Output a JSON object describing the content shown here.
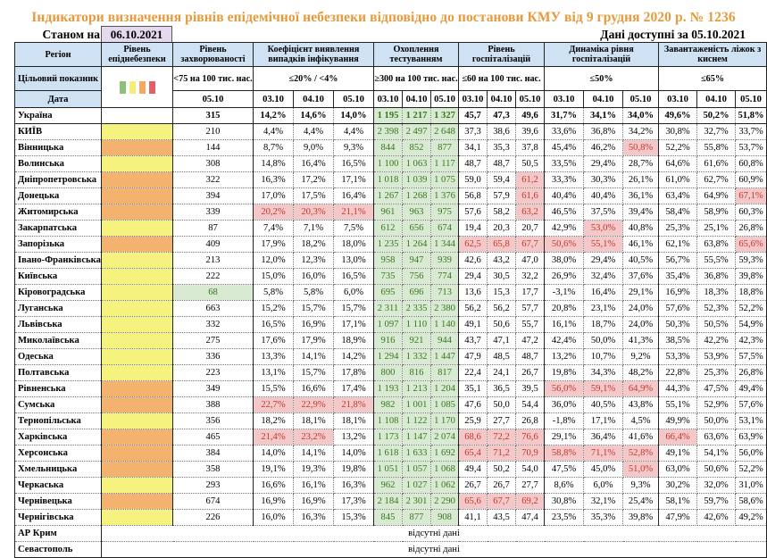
{
  "title": "Індикатори визначення рівнів епідемічної небезпеки відповідно до постанови КМУ від 9 грудня 2020 р. № 1236",
  "as_of_label": "Станом на",
  "as_of_date": "06.10.2021",
  "available_label": "Дані доступні за  05.10.2021",
  "headers": {
    "region": "Регіон",
    "level": "Рівень епіднебезпеки",
    "incidence": "Рівень захворюваності",
    "detection": "Коефіцієнт виявлення випадків інфікування",
    "testing": "Охоплення тестуванням",
    "hosp": "Рівень госпіталізацій",
    "hosp_dyn": "Динаміка рівня госпіталізацій",
    "beds": "Завантаженість ліжок з киснем"
  },
  "target_row": {
    "label": "Цільовий показник",
    "incidence": "<75 на 100 тис. нас.",
    "detection": "≤20% / <4%",
    "testing": "≥300 на 100 тис. нас.",
    "hosp": "≤60 на 100 тис. нас.",
    "hosp_dyn": "≤50%",
    "beds": "≤65%"
  },
  "legend_colors": [
    "#8fc07a",
    "#f2ee78",
    "#f3a95e",
    "#e26168"
  ],
  "date_row": {
    "label": "Дата",
    "incidence": "05.10",
    "d1": "03.10",
    "d2": "04.10",
    "d3": "05.10"
  },
  "colors": {
    "yellow": "#f5f37d",
    "orange": "#f3b26e",
    "green_fill": "#d9ead3",
    "red_fill": "#f4c7c9",
    "header_fill": "#cfe2f3",
    "title": "#e69a3c"
  },
  "rows": [
    {
      "region": "Україна",
      "level": "none",
      "inc": "315",
      "det": [
        "14,2%",
        "14,6%",
        "14,0%"
      ],
      "test": [
        "1 195",
        "1 217",
        "1 327"
      ],
      "hosp": [
        "45,7",
        "47,3",
        "49,6"
      ],
      "dyn": [
        "31,7%",
        "34,1%",
        "34,0%"
      ],
      "beds": [
        "49,6%",
        "50,2%",
        "51,8%"
      ]
    },
    {
      "region": "КИЇВ",
      "level": "yellow",
      "inc": "210",
      "det": [
        "4,4%",
        "4,4%",
        "4,4%"
      ],
      "test": [
        "2 398",
        "2 497",
        "2 648"
      ],
      "hosp": [
        "37,3",
        "38,6",
        "39,6"
      ],
      "dyn": [
        "33,6%",
        "36,8%",
        "34,2%"
      ],
      "beds": [
        "30,8%",
        "32,7%",
        "33,7%"
      ]
    },
    {
      "region": "Вінницька",
      "level": "orange",
      "inc": "144",
      "det": [
        "8,7%",
        "9,0%",
        "9,3%"
      ],
      "test": [
        "844",
        "852",
        "877"
      ],
      "hosp": [
        "34,1",
        "35,3",
        "37,8"
      ],
      "dyn": [
        "45,4%",
        "46,2%",
        "50,8%"
      ],
      "beds": [
        "52,2%",
        "55,8%",
        "53,7%"
      ],
      "red": [
        "dyn2"
      ]
    },
    {
      "region": "Волинська",
      "level": "yellow",
      "inc": "308",
      "det": [
        "14,8%",
        "16,4%",
        "16,5%"
      ],
      "test": [
        "1 100",
        "1 063",
        "1 117"
      ],
      "hosp": [
        "48,7",
        "48,7",
        "50,5"
      ],
      "dyn": [
        "33,5%",
        "29,4%",
        "28,7%"
      ],
      "beds": [
        "64,6%",
        "61,6%",
        "60,8%"
      ]
    },
    {
      "region": "Дніпропетровська",
      "level": "orange",
      "inc": "322",
      "det": [
        "16,3%",
        "17,2%",
        "17,1%"
      ],
      "test": [
        "1 018",
        "1 039",
        "1 075"
      ],
      "hosp": [
        "59,0",
        "59,4",
        "61,2"
      ],
      "dyn": [
        "33,3%",
        "30,3%",
        "26,1%"
      ],
      "beds": [
        "61,0%",
        "62,7%",
        "60,9%"
      ],
      "red": [
        "hosp2"
      ]
    },
    {
      "region": "Донецька",
      "level": "orange",
      "inc": "394",
      "det": [
        "17,0%",
        "17,5%",
        "16,4%"
      ],
      "test": [
        "1 267",
        "1 268",
        "1 376"
      ],
      "hosp": [
        "56,8",
        "57,9",
        "61,6"
      ],
      "dyn": [
        "40,4%",
        "40,4%",
        "36,1%"
      ],
      "beds": [
        "63,4%",
        "64,9%",
        "67,1%"
      ],
      "red": [
        "hosp2",
        "beds2"
      ]
    },
    {
      "region": "Житомирська",
      "level": "orange",
      "inc": "339",
      "det": [
        "20,2%",
        "20,3%",
        "21,1%"
      ],
      "test": [
        "961",
        "963",
        "975"
      ],
      "hosp": [
        "57,6",
        "58,2",
        "63,2"
      ],
      "dyn": [
        "46,5%",
        "37,5%",
        "39,4%"
      ],
      "beds": [
        "58,4%",
        "58,9%",
        "60,3%"
      ],
      "red": [
        "det0",
        "det1",
        "det2",
        "hosp2"
      ]
    },
    {
      "region": "Закарпатська",
      "level": "yellow",
      "inc": "87",
      "det": [
        "7,4%",
        "7,1%",
        "7,5%"
      ],
      "test": [
        "612",
        "656",
        "674"
      ],
      "hosp": [
        "19,4",
        "20,3",
        "20,7"
      ],
      "dyn": [
        "42,9%",
        "53,0%",
        "40,8%"
      ],
      "beds": [
        "25,3%",
        "25,1%",
        "26,8%"
      ],
      "red": [
        "dyn1"
      ]
    },
    {
      "region": "Запорізька",
      "level": "orange",
      "inc": "409",
      "det": [
        "17,9%",
        "18,2%",
        "18,0%"
      ],
      "test": [
        "1 235",
        "1 264",
        "1 344"
      ],
      "hosp": [
        "62,5",
        "65,8",
        "67,7"
      ],
      "dyn": [
        "50,6%",
        "55,1%",
        "46,1%"
      ],
      "beds": [
        "62,1%",
        "63,8%",
        "65,6%"
      ],
      "red": [
        "hosp0",
        "hosp1",
        "hosp2",
        "dyn0",
        "dyn1",
        "beds2"
      ]
    },
    {
      "region": "Івано-Франківська",
      "level": "yellow",
      "inc": "213",
      "det": [
        "12,0%",
        "12,3%",
        "13,0%"
      ],
      "test": [
        "958",
        "947",
        "939"
      ],
      "hosp": [
        "42,6",
        "43,2",
        "47,0"
      ],
      "dyn": [
        "38,0%",
        "29,4%",
        "40,5%"
      ],
      "beds": [
        "56,7%",
        "55,5%",
        "59,3%"
      ]
    },
    {
      "region": "Київська",
      "level": "yellow",
      "inc": "222",
      "det": [
        "15,0%",
        "16,0%",
        "16,5%"
      ],
      "test": [
        "735",
        "756",
        "774"
      ],
      "hosp": [
        "29,4",
        "30,5",
        "32,2"
      ],
      "dyn": [
        "26,9%",
        "32,4%",
        "37,6%"
      ],
      "beds": [
        "35,4%",
        "36,8%",
        "39,8%"
      ]
    },
    {
      "region": "Кіровоградська",
      "level": "yellow",
      "inc": "68",
      "inc_green": true,
      "det": [
        "5,8%",
        "5,8%",
        "6,0%"
      ],
      "test": [
        "695",
        "696",
        "713"
      ],
      "hosp": [
        "13,6",
        "15,3",
        "17,7"
      ],
      "dyn": [
        "-3,1%",
        "16,4%",
        "29,1%"
      ],
      "beds": [
        "16,9%",
        "18,3%",
        "18,8%"
      ]
    },
    {
      "region": "Луганська",
      "level": "yellow",
      "inc": "663",
      "det": [
        "15,2%",
        "15,7%",
        "15,7%"
      ],
      "test": [
        "2 311",
        "2 335",
        "2 380"
      ],
      "hosp": [
        "56,2",
        "56,2",
        "57,7"
      ],
      "dyn": [
        "20,8%",
        "23,1%",
        "24,0%"
      ],
      "beds": [
        "57,6%",
        "52,3%",
        "52,2%"
      ]
    },
    {
      "region": "Львівська",
      "level": "yellow",
      "inc": "332",
      "det": [
        "16,5%",
        "16,9%",
        "17,1%"
      ],
      "test": [
        "1 097",
        "1 110",
        "1 140"
      ],
      "hosp": [
        "49,1",
        "50,6",
        "55,7"
      ],
      "dyn": [
        "16,1%",
        "18,7%",
        "24,0%"
      ],
      "beds": [
        "50,3%",
        "50,5%",
        "54,9%"
      ]
    },
    {
      "region": "Миколаївська",
      "level": "yellow",
      "inc": "275",
      "det": [
        "17,6%",
        "17,9%",
        "18,9%"
      ],
      "test": [
        "916",
        "921",
        "944"
      ],
      "hosp": [
        "43,7",
        "47,1",
        "47,2"
      ],
      "dyn": [
        "42,4%",
        "50,0%",
        "41,3%"
      ],
      "beds": [
        "38,5%",
        "42,2%",
        "42,3%"
      ]
    },
    {
      "region": "Одеська",
      "level": "yellow",
      "inc": "336",
      "det": [
        "13,3%",
        "14,1%",
        "14,2%"
      ],
      "test": [
        "1 294",
        "1 332",
        "1 447"
      ],
      "hosp": [
        "47,9",
        "48,5",
        "48,7"
      ],
      "dyn": [
        "13,2%",
        "10,7%",
        "9,2%"
      ],
      "beds": [
        "53,3%",
        "53,9%",
        "57,5%"
      ]
    },
    {
      "region": "Полтавська",
      "level": "yellow",
      "inc": "223",
      "det": [
        "13,1%",
        "15,7%",
        "17,8%"
      ],
      "test": [
        "800",
        "816",
        "817"
      ],
      "hosp": [
        "22,4",
        "24,1",
        "26,7"
      ],
      "dyn": [
        "19,8%",
        "34,3%",
        "48,2%"
      ],
      "beds": [
        "22,8%",
        "25,3%",
        "26,8%"
      ]
    },
    {
      "region": "Рівненська",
      "level": "orange",
      "inc": "349",
      "det": [
        "15,5%",
        "16,6%",
        "17,4%"
      ],
      "test": [
        "1 193",
        "1 213",
        "1 204"
      ],
      "hosp": [
        "35,1",
        "36,5",
        "39,5"
      ],
      "dyn": [
        "56,0%",
        "59,1%",
        "64,9%"
      ],
      "beds": [
        "44,3%",
        "47,5%",
        "49,4%"
      ],
      "red": [
        "dyn0",
        "dyn1",
        "dyn2"
      ]
    },
    {
      "region": "Сумська",
      "level": "orange",
      "inc": "388",
      "det": [
        "22,7%",
        "22,9%",
        "21,8%"
      ],
      "test": [
        "982",
        "1 001",
        "1 085"
      ],
      "hosp": [
        "47,6",
        "50,0",
        "54,4"
      ],
      "dyn": [
        "36,0%",
        "40,5%",
        "43,8%"
      ],
      "beds": [
        "55,1%",
        "52,9%",
        "57,6%"
      ],
      "red": [
        "det0",
        "det1",
        "det2"
      ]
    },
    {
      "region": "Тернопільська",
      "level": "yellow",
      "inc": "356",
      "det": [
        "18,2%",
        "18,1%",
        "18,1%"
      ],
      "test": [
        "1 108",
        "1 122",
        "1 170"
      ],
      "hosp": [
        "25,9",
        "27,7",
        "26,8"
      ],
      "dyn": [
        "-1,8%",
        "17,1%",
        "4,5%"
      ],
      "beds": [
        "49,9%",
        "50,0%",
        "53,1%"
      ]
    },
    {
      "region": "Харківська",
      "level": "orange",
      "inc": "465",
      "det": [
        "21,4%",
        "23,2%",
        "13,2%"
      ],
      "test": [
        "1 173",
        "1 147",
        "2 074"
      ],
      "hosp": [
        "68,6",
        "72,2",
        "76,6"
      ],
      "dyn": [
        "29,1%",
        "36,4%",
        "41,6%"
      ],
      "beds": [
        "66,4%",
        "63,6%",
        "63,9%"
      ],
      "red": [
        "det0",
        "det1",
        "hosp0",
        "hosp1",
        "hosp2",
        "beds0"
      ]
    },
    {
      "region": "Херсонська",
      "level": "orange",
      "inc": "384",
      "det": [
        "14,0%",
        "14,1%",
        "14,0%"
      ],
      "test": [
        "1 618",
        "1 633",
        "1 692"
      ],
      "hosp": [
        "65,4",
        "71,2",
        "70,9"
      ],
      "dyn": [
        "58,8%",
        "71,1%",
        "52,8%"
      ],
      "beds": [
        "49,1%",
        "54,1%",
        "56,0%"
      ],
      "red": [
        "hosp0",
        "hosp1",
        "hosp2",
        "dyn0",
        "dyn1",
        "dyn2"
      ]
    },
    {
      "region": "Хмельницька",
      "level": "orange",
      "inc": "358",
      "det": [
        "19,1%",
        "19,3%",
        "19,8%"
      ],
      "test": [
        "1 051",
        "1 057",
        "1 068"
      ],
      "hosp": [
        "49,4",
        "50,2",
        "54,0"
      ],
      "dyn": [
        "47,5%",
        "45,0%",
        "51,0%"
      ],
      "beds": [
        "63,0%",
        "50,6%",
        "52,2%"
      ],
      "red": [
        "dyn2"
      ]
    },
    {
      "region": "Черкаська",
      "level": "yellow",
      "inc": "293",
      "det": [
        "16,6%",
        "16,1%",
        "16,3%"
      ],
      "test": [
        "962",
        "1 027",
        "1 062"
      ],
      "hosp": [
        "26,7",
        "26,7",
        "27,7"
      ],
      "dyn": [
        "8,6%",
        "6,0%",
        "9,3%"
      ],
      "beds": [
        "30,2%",
        "32,0%",
        "31,0%"
      ]
    },
    {
      "region": "Чернівецька",
      "level": "orange",
      "inc": "674",
      "det": [
        "16,9%",
        "16,9%",
        "17,3%"
      ],
      "test": [
        "2 184",
        "2 301",
        "2 290"
      ],
      "hosp": [
        "65,6",
        "67,7",
        "69,2"
      ],
      "dyn": [
        "30,8%",
        "32,1%",
        "25,4%"
      ],
      "beds": [
        "58,1%",
        "59,7%",
        "58,6%"
      ],
      "red": [
        "hosp0",
        "hosp1",
        "hosp2"
      ]
    },
    {
      "region": "Чернігівська",
      "level": "yellow",
      "inc": "226",
      "det": [
        "16,0%",
        "16,3%",
        "15,3%"
      ],
      "test": [
        "845",
        "877",
        "908"
      ],
      "hosp": [
        "41,1",
        "43,5",
        "47,4"
      ],
      "dyn": [
        "23,5%",
        "35,3%",
        "39,8%"
      ],
      "beds": [
        "47,9%",
        "42,6%",
        "49,2%"
      ]
    }
  ],
  "no_data_rows": [
    {
      "region": "АР Крим",
      "text": "відсутні дані"
    },
    {
      "region": "Севастополь",
      "text": "відсутні дані"
    }
  ]
}
